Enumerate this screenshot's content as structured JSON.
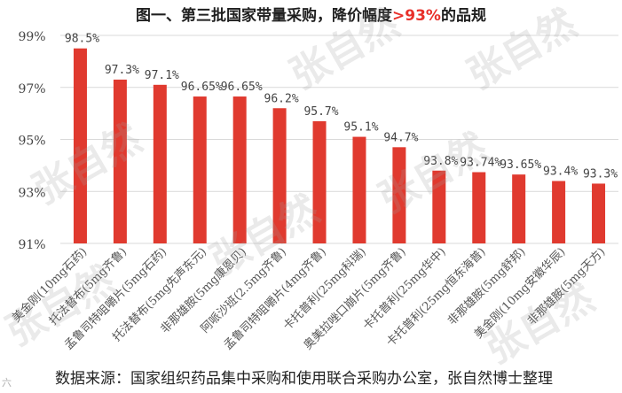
{
  "title": {
    "prefix": "图一、第三批国家带量采购，降价幅度",
    "highlight": ">93%",
    "suffix": "的品规"
  },
  "source_note": "数据来源：国家组织药品集中采购和使用联合采购办公室，张自然博士整理",
  "watermark": "张自然",
  "corner_logo": "六",
  "colors": {
    "bar": "#e03a2f",
    "highlight": "#e8302a",
    "grid": "#d9d9d9"
  },
  "chart_data": {
    "type": "bar",
    "title": "图一、第三批国家带量采购，降价幅度>93%的品规",
    "categories": [
      "美金刚(10mg石药)",
      "托法替布(5mg齐鲁)",
      "孟鲁司特咀嚼片(5mg石药)",
      "托法替布(5mg先声东元)",
      "非那雄胺(5mg康恩贝)",
      "阿哌沙班(2.5mg齐鲁)",
      "孟鲁司特咀嚼片(4mg齐鲁)",
      "卡托普利(25mg科瑞)",
      "奥美拉唑口崩片(5mg齐鲁)",
      "卡托普利(25mg华中)",
      "卡托普利(25mg恒东海普)",
      "非那雄胺(5mg舒邦)",
      "美金刚(10mg安徽华辰)",
      "非那雄胺(5mg天方)"
    ],
    "values": [
      98.5,
      97.3,
      97.1,
      96.65,
      96.65,
      96.2,
      95.7,
      95.1,
      94.7,
      93.8,
      93.74,
      93.65,
      93.4,
      93.3
    ],
    "data_labels": [
      "98.5%",
      "97.3%",
      "97.1%",
      "96.65%",
      "96.65%",
      "96.2%",
      "95.7%",
      "95.1%",
      "94.7%",
      "93.8%",
      "93.74%",
      "93.65%",
      "93.4%",
      "93.3%"
    ],
    "ylim": [
      91,
      99
    ],
    "yticks": [
      91,
      93,
      95,
      97,
      99
    ],
    "ytick_labels": [
      "91%",
      "93%",
      "95%",
      "97%",
      "99%"
    ],
    "grid": true,
    "legend": false
  }
}
